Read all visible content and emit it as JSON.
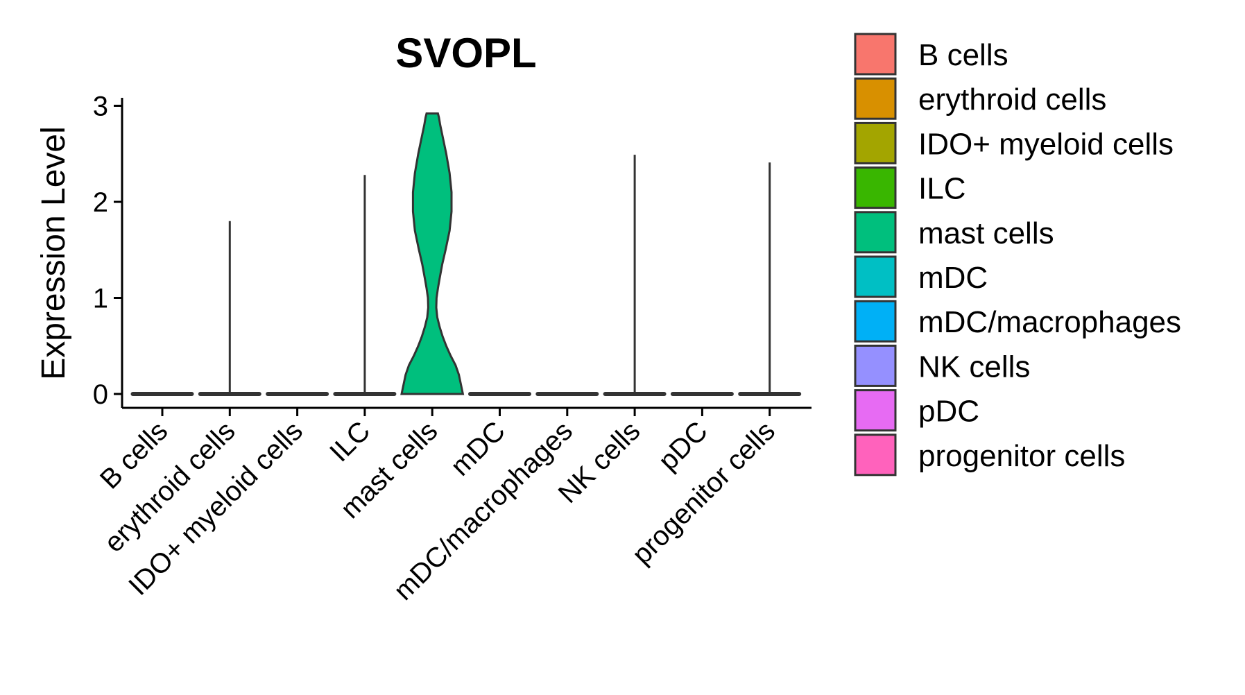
{
  "chart_data": {
    "type": "violin",
    "title": "SVOPL",
    "xlabel": "",
    "ylabel": "Expression Level",
    "ylim": [
      -0.15,
      3.05
    ],
    "yticks": [
      0,
      1,
      2,
      3
    ],
    "categories": [
      "B cells",
      "erythroid cells",
      "IDO+ myeloid cells",
      "ILC",
      "mast cells",
      "mDC",
      "mDC/macrophages",
      "NK cells",
      "pDC",
      "progenitor cells"
    ],
    "colors": [
      "#F8766D",
      "#D89000",
      "#A3A500",
      "#39B600",
      "#00BF7D",
      "#00BFC4",
      "#00B0F6",
      "#9590FF",
      "#E76BF3",
      "#FF62BC"
    ],
    "max_values": [
      0,
      1.8,
      0,
      2.28,
      2.92,
      0,
      0,
      2.49,
      0,
      2.41
    ],
    "mast_density_profile": [
      [
        0.0,
        0.92
      ],
      [
        0.1,
        0.86
      ],
      [
        0.2,
        0.8
      ],
      [
        0.3,
        0.7
      ],
      [
        0.4,
        0.55
      ],
      [
        0.5,
        0.42
      ],
      [
        0.6,
        0.31
      ],
      [
        0.7,
        0.22
      ],
      [
        0.8,
        0.15
      ],
      [
        0.9,
        0.12
      ],
      [
        1.0,
        0.13
      ],
      [
        1.1,
        0.17
      ],
      [
        1.2,
        0.22
      ],
      [
        1.35,
        0.3
      ],
      [
        1.5,
        0.4
      ],
      [
        1.7,
        0.52
      ],
      [
        1.9,
        0.58
      ],
      [
        2.1,
        0.58
      ],
      [
        2.3,
        0.52
      ],
      [
        2.5,
        0.42
      ],
      [
        2.7,
        0.3
      ],
      [
        2.8,
        0.24
      ],
      [
        2.88,
        0.2
      ],
      [
        2.92,
        0.17
      ]
    ],
    "legend": {
      "position": "right",
      "entries": [
        "B cells",
        "erythroid cells",
        "IDO+ myeloid cells",
        "ILC",
        "mast cells",
        "mDC",
        "mDC/macrophages",
        "NK cells",
        "pDC",
        "progenitor cells"
      ]
    }
  }
}
